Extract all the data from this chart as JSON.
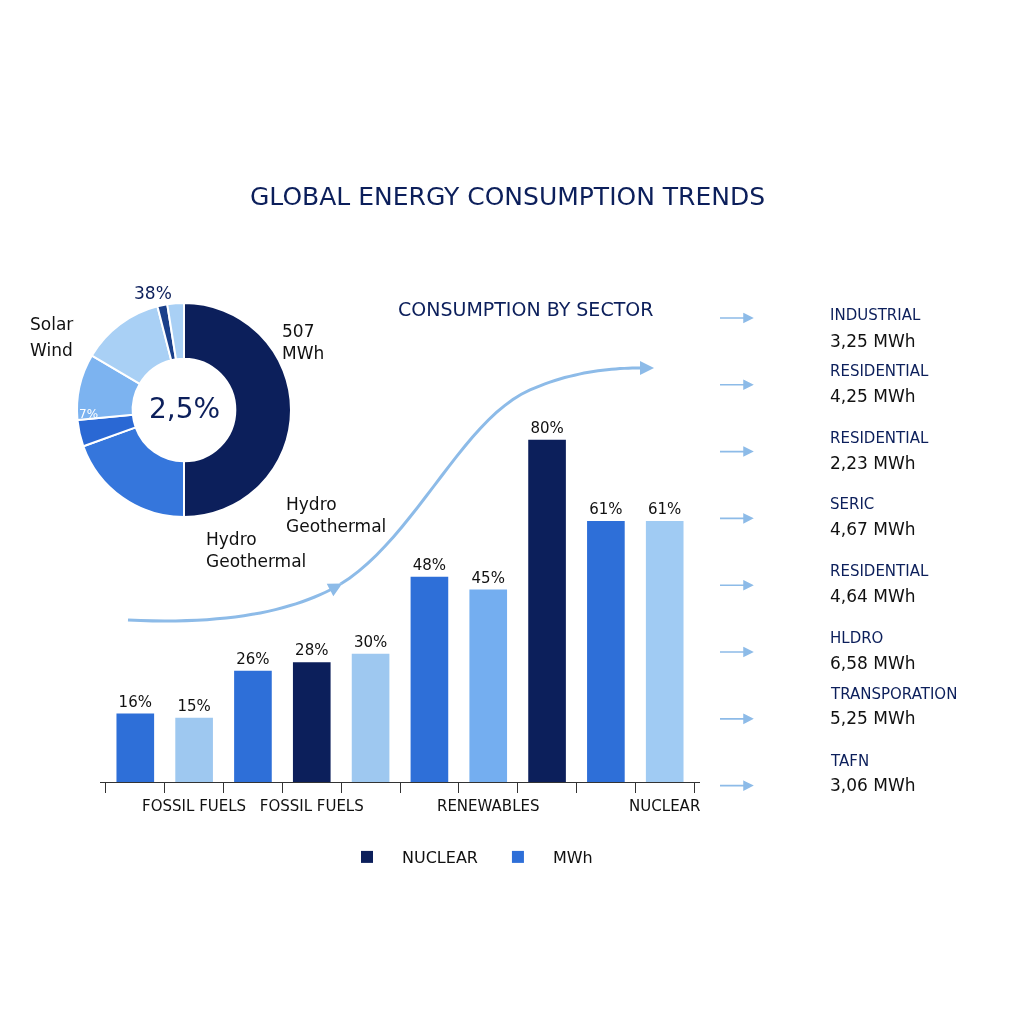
{
  "chart_data": [
    {
      "type": "donut",
      "title": "GLOBAL ENERGY CONSUMPTION TRENDS",
      "categories": [
        null,
        null,
        null,
        null,
        null,
        null,
        null
      ],
      "values": [
        50,
        19.5,
        4,
        10,
        12.5,
        1.5,
        2.5
      ],
      "colors": [
        "#0c1f5b",
        "#3576dc",
        "#2a68d4",
        "#7cb3f0",
        "#a9d0f5",
        "#1a3f8a",
        "#a9d0f5"
      ],
      "annotations": [
        "38%",
        "Solar",
        "Wind",
        "507 MWh",
        "2,5%",
        "7%",
        "Hydro Geothermal",
        "Hydro Geothermal"
      ]
    },
    {
      "type": "bar",
      "title": "CONSUMPTION BY SECTOR",
      "tick_labels": "x",
      "categories": [
        null,
        "FOSSIL FUELS",
        null,
        "FOSSIL FUELS",
        null,
        null,
        "RENEWABLES",
        null,
        null,
        "NUCLEAR"
      ],
      "series": [
        {
          "name": "NUCLEAR",
          "color": "#0c1f5b",
          "values": [
            null,
            null,
            null,
            28,
            null,
            null,
            null,
            80,
            null,
            null
          ],
          "value_labels": [
            null,
            null,
            null,
            "28%",
            null,
            null,
            null,
            "80%",
            null,
            null
          ]
        },
        {
          "name": "MWh",
          "color": "#2e6fd8",
          "values": [
            16,
            null,
            26,
            null,
            null,
            48,
            null,
            null,
            61,
            null
          ],
          "value_labels": [
            "16%",
            null,
            "26%",
            null,
            null,
            "48%",
            null,
            null,
            "61%",
            null
          ]
        },
        {
          "colors": [
            null,
            "#9ec8f0",
            null,
            null,
            "#9ec8f0",
            null,
            "#74aef0",
            null,
            null,
            "#a0cbf3"
          ],
          "values": [
            null,
            15,
            null,
            null,
            30,
            null,
            45,
            null,
            null,
            61
          ],
          "value_labels": [
            null,
            "15%",
            null,
            null,
            "30%",
            null,
            "45%",
            null,
            null,
            "61%"
          ]
        }
      ],
      "legend": "bottom"
    },
    {
      "type": "other",
      "annotations": [
        "INDUSTRIAL",
        "3,25 MWh",
        "RESIDENTIAL",
        "4,25 MWh",
        "RESIDENTIAL",
        "2,23 MWh",
        "SERIC",
        "4,67 MWh",
        "RESIDENTIAL",
        "4,64 MWh",
        "HLDRO",
        "6,58 MWh",
        "TRANSPORATION",
        "5,25 MWh",
        "TAFN",
        "3,06 MWh"
      ]
    }
  ]
}
